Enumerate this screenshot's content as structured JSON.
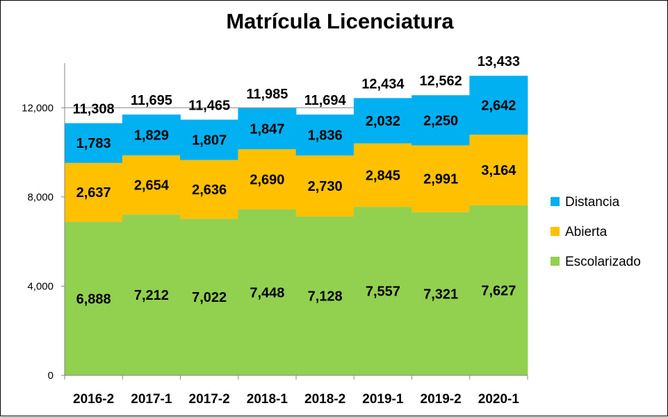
{
  "chart_data": {
    "type": "bar",
    "stacked": true,
    "title": "Matrícula Licenciatura",
    "xlabel": "",
    "ylabel": "",
    "categories": [
      "2016-2",
      "2017-1",
      "2017-2",
      "2018-1",
      "2018-2",
      "2019-1",
      "2019-2",
      "2020-1"
    ],
    "series": [
      {
        "name": "Escolarizado",
        "color": "#92D050",
        "values": [
          6888,
          7212,
          7022,
          7448,
          7128,
          7557,
          7321,
          7627
        ],
        "labels": [
          "6,888",
          "7,212",
          "7,022",
          "7,448",
          "7,128",
          "7,557",
          "7,321",
          "7,627"
        ]
      },
      {
        "name": "Abierta",
        "color": "#FFC000",
        "values": [
          2637,
          2654,
          2636,
          2690,
          2730,
          2845,
          2991,
          3164
        ],
        "labels": [
          "2,637",
          "2,654",
          "2,636",
          "2,690",
          "2,730",
          "2,845",
          "2,991",
          "3,164"
        ]
      },
      {
        "name": "Distancia",
        "color": "#00B0F0",
        "values": [
          1783,
          1829,
          1807,
          1847,
          1836,
          2032,
          2250,
          2642
        ],
        "labels": [
          "1,783",
          "1,829",
          "1,807",
          "1,847",
          "1,836",
          "2,032",
          "2,250",
          "2,642"
        ]
      }
    ],
    "totals": [
      11308,
      11695,
      11465,
      11985,
      11694,
      12434,
      12562,
      13433
    ],
    "total_labels": [
      "11,308",
      "11,695",
      "11,465",
      "11,985",
      "11,694",
      "12,434",
      "12,562",
      "13,433"
    ],
    "yticks": [
      0,
      4000,
      8000,
      12000
    ],
    "ytick_labels": [
      "0",
      "4,000",
      "8,000",
      "12,000"
    ],
    "ylim": [
      0,
      14000
    ],
    "grid": true,
    "legend": {
      "position": "right",
      "entries": [
        "Distancia",
        "Abierta",
        "Escolarizado"
      ],
      "colors": [
        "#00B0F0",
        "#FFC000",
        "#92D050"
      ]
    }
  }
}
